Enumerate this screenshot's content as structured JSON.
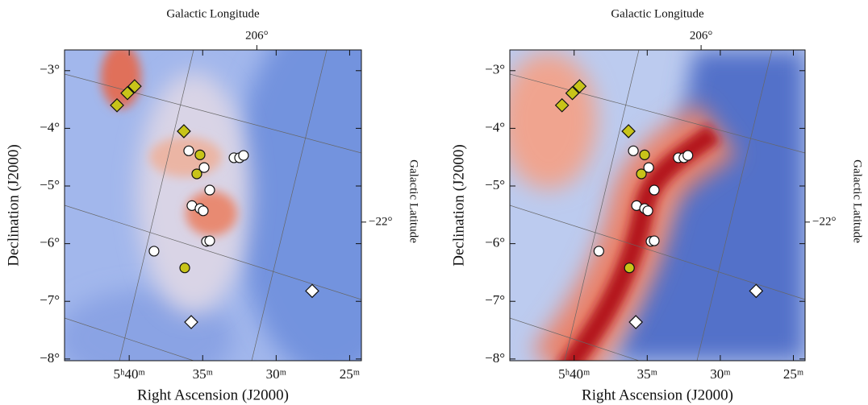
{
  "chart_data": [
    {
      "type": "scatter",
      "xlabel": "Right Ascension (J2000)",
      "ylabel": "Declination (J2000)",
      "x2label": "Galactic Longitude",
      "y2label": "Galactic Latitude",
      "xlim": [
        44.4,
        24.2
      ],
      "xticks": [
        {
          "value": 40,
          "label": "5ʰ40ᵐ"
        },
        {
          "value": 35,
          "label": "35ᵐ"
        },
        {
          "value": 30,
          "label": "30ᵐ"
        },
        {
          "value": 25,
          "label": "25ᵐ"
        }
      ],
      "ylim": [
        -8.03,
        -2.64
      ],
      "yticks": [
        {
          "value": -3,
          "label": "−3°"
        },
        {
          "value": -4,
          "label": "−4°"
        },
        {
          "value": -5,
          "label": "−5°"
        },
        {
          "value": -6,
          "label": "−6°"
        },
        {
          "value": -7,
          "label": "−7°"
        },
        {
          "value": -8,
          "label": "−8°"
        }
      ],
      "x2lim": [
        208.98,
        204.38
      ],
      "x2ticks": [
        {
          "value": 206,
          "label": "206°"
        }
      ],
      "y2lim": [
        -24.15,
        -19.33
      ],
      "y2ticks": [
        {
          "value": -22,
          "label": "−22°"
        }
      ],
      "series": [
        {
          "marker": "diamond",
          "color": "#c8c419",
          "x": [
            39.63,
            40.12,
            40.83,
            36.28
          ],
          "values": [
            -3.27,
            -3.39,
            -3.6,
            -4.05
          ]
        },
        {
          "marker": "circle",
          "color": "#c8c419",
          "x": [
            35.18,
            35.4,
            36.22
          ],
          "values": [
            -4.46,
            -4.79,
            -6.42
          ]
        },
        {
          "marker": "circle",
          "color": "#ffffff",
          "x": [
            35.95,
            34.9,
            32.87,
            32.49,
            32.22,
            34.52,
            35.73,
            35.18,
            34.96,
            34.74,
            34.52,
            38.31
          ],
          "values": [
            -4.39,
            -4.68,
            -4.51,
            -4.51,
            -4.47,
            -5.07,
            -5.34,
            -5.39,
            -5.43,
            -5.96,
            -5.95,
            -6.13
          ]
        },
        {
          "marker": "diamond",
          "color": "#ffffff",
          "x": [
            27.55,
            35.78
          ],
          "values": [
            -6.82,
            -7.36
          ]
        }
      ]
    },
    {
      "type": "scatter",
      "xlabel": "Right Ascension (J2000)",
      "ylabel": "Declination (J2000)",
      "x2label": "Galactic Longitude",
      "y2label": "Galactic Latitude",
      "xlim": [
        44.4,
        24.2
      ],
      "xticks": [
        {
          "value": 40,
          "label": "5ʰ40ᵐ"
        },
        {
          "value": 35,
          "label": "35ᵐ"
        },
        {
          "value": 30,
          "label": "30ᵐ"
        },
        {
          "value": 25,
          "label": "25ᵐ"
        }
      ],
      "ylim": [
        -8.03,
        -2.64
      ],
      "yticks": [
        {
          "value": -3,
          "label": "−3°"
        },
        {
          "value": -4,
          "label": "−4°"
        },
        {
          "value": -5,
          "label": "−5°"
        },
        {
          "value": -6,
          "label": "−6°"
        },
        {
          "value": -7,
          "label": "−7°"
        },
        {
          "value": -8,
          "label": "−8°"
        }
      ],
      "x2lim": [
        208.98,
        204.38
      ],
      "x2ticks": [
        {
          "value": 206,
          "label": "206°"
        }
      ],
      "y2lim": [
        -24.15,
        -19.33
      ],
      "y2ticks": [
        {
          "value": -22,
          "label": "−22°"
        }
      ],
      "series": [
        {
          "marker": "diamond",
          "color": "#c8c419",
          "x": [
            39.63,
            40.12,
            40.83,
            36.28
          ],
          "values": [
            -3.27,
            -3.39,
            -3.6,
            -4.05
          ]
        },
        {
          "marker": "circle",
          "color": "#c8c419",
          "x": [
            35.18,
            35.4,
            36.22
          ],
          "values": [
            -4.46,
            -4.79,
            -6.42
          ]
        },
        {
          "marker": "circle",
          "color": "#ffffff",
          "x": [
            35.95,
            34.9,
            32.87,
            32.49,
            32.22,
            34.52,
            35.73,
            35.18,
            34.96,
            34.74,
            34.52,
            38.31
          ],
          "values": [
            -4.39,
            -4.68,
            -4.51,
            -4.51,
            -4.47,
            -5.07,
            -5.34,
            -5.39,
            -5.43,
            -5.96,
            -5.95,
            -6.13
          ]
        },
        {
          "marker": "diamond",
          "color": "#ffffff",
          "x": [
            27.55,
            35.78
          ],
          "values": [
            -6.82,
            -7.36
          ]
        }
      ]
    }
  ]
}
